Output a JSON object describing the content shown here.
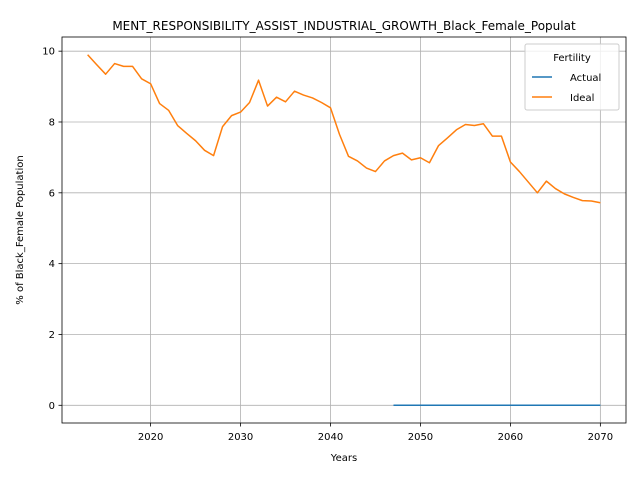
{
  "chart_data": {
    "type": "line",
    "title": "MENT_RESPONSIBILITY_ASSIST_INDUSTRIAL_GROWTH_Black_Female_Populat",
    "xlabel": "Years",
    "ylabel": "% of Black_Female Population",
    "xlim": [
      2010.15,
      2072.85
    ],
    "ylim": [
      -0.5,
      10.4
    ],
    "x_ticks": [
      2020,
      2030,
      2040,
      2050,
      2060,
      2070
    ],
    "y_ticks": [
      0,
      2,
      4,
      6,
      8,
      10
    ],
    "grid": true,
    "legend": {
      "title": "Fertility",
      "position": "top-right"
    },
    "series": [
      {
        "name": "Actual",
        "color": "#1f77b4",
        "x": [
          2047,
          2048,
          2049,
          2050,
          2051,
          2052,
          2053,
          2054,
          2055,
          2056,
          2057,
          2058,
          2059,
          2060,
          2061,
          2062,
          2063,
          2064,
          2065,
          2066,
          2067,
          2068,
          2069,
          2070
        ],
        "y": [
          0,
          0,
          0,
          0,
          0,
          0,
          0,
          0,
          0,
          0,
          0,
          0,
          0,
          0,
          0,
          0,
          0,
          0,
          0,
          0,
          0,
          0,
          0,
          0
        ]
      },
      {
        "name": "Ideal",
        "color": "#ff7f0e",
        "x": [
          2013,
          2014,
          2015,
          2016,
          2017,
          2018,
          2019,
          2020,
          2021,
          2022,
          2023,
          2024,
          2025,
          2026,
          2027,
          2028,
          2029,
          2030,
          2031,
          2032,
          2033,
          2034,
          2035,
          2036,
          2037,
          2038,
          2039,
          2040,
          2041,
          2042,
          2043,
          2044,
          2045,
          2046,
          2047,
          2048,
          2049,
          2050,
          2051,
          2052,
          2053,
          2054,
          2055,
          2056,
          2057,
          2058,
          2059,
          2060,
          2061,
          2062,
          2063,
          2064,
          2065,
          2066,
          2067,
          2068,
          2069,
          2070
        ],
        "y": [
          9.9,
          9.62,
          9.35,
          9.65,
          9.57,
          9.57,
          9.22,
          9.08,
          8.52,
          8.33,
          7.9,
          7.68,
          7.47,
          7.2,
          7.05,
          7.87,
          8.18,
          8.28,
          8.55,
          9.18,
          8.45,
          8.7,
          8.57,
          8.87,
          8.76,
          8.68,
          8.55,
          8.4,
          7.65,
          7.03,
          6.9,
          6.7,
          6.6,
          6.9,
          7.05,
          7.12,
          6.93,
          6.99,
          6.85,
          7.33,
          7.55,
          7.78,
          7.93,
          7.9,
          7.95,
          7.6,
          7.6,
          6.87,
          6.6,
          6.3,
          6.0,
          6.33,
          6.12,
          5.97,
          5.87,
          5.78,
          5.77,
          5.72
        ]
      }
    ]
  }
}
